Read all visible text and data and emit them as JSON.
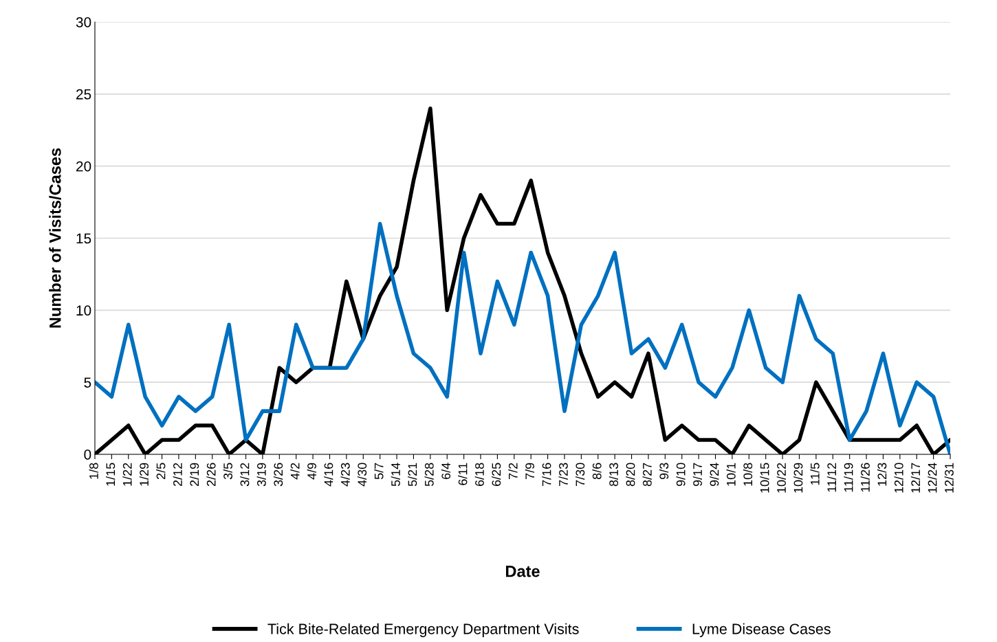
{
  "chart_data": {
    "type": "line",
    "xlabel": "Date",
    "ylabel": "Number of Visits/Cases",
    "categories": [
      "1/8",
      "1/15",
      "1/22",
      "1/29",
      "2/5",
      "2/12",
      "2/19",
      "2/26",
      "3/5",
      "3/12",
      "3/19",
      "3/26",
      "4/2",
      "4/9",
      "4/16",
      "4/23",
      "4/30",
      "5/7",
      "5/14",
      "5/21",
      "5/28",
      "6/4",
      "6/11",
      "6/18",
      "6/25",
      "7/2",
      "7/9",
      "7/16",
      "7/23",
      "7/30",
      "8/6",
      "8/13",
      "8/20",
      "8/27",
      "9/3",
      "9/10",
      "9/17",
      "9/24",
      "10/1",
      "10/8",
      "10/15",
      "10/22",
      "10/29",
      "11/5",
      "11/12",
      "11/19",
      "11/26",
      "12/3",
      "12/10",
      "12/17",
      "12/24",
      "12/31"
    ],
    "series": [
      {
        "name": "Tick Bite-Related Emergency Department Visits",
        "color": "#000000",
        "values": [
          0,
          1,
          2,
          0,
          1,
          1,
          2,
          2,
          0,
          1,
          0,
          6,
          5,
          6,
          6,
          12,
          8,
          11,
          13,
          19,
          24,
          10,
          15,
          18,
          16,
          16,
          19,
          14,
          11,
          7,
          4,
          5,
          4,
          7,
          1,
          2,
          1,
          1,
          0,
          2,
          1,
          0,
          1,
          5,
          3,
          1,
          1,
          1,
          1,
          2,
          0,
          1
        ]
      },
      {
        "name": "Lyme Disease Cases",
        "color": "#0070c0",
        "values": [
          5,
          4,
          9,
          4,
          2,
          4,
          3,
          4,
          9,
          1,
          3,
          3,
          9,
          6,
          6,
          6,
          8,
          16,
          11,
          7,
          6,
          4,
          14,
          7,
          12,
          9,
          14,
          11,
          3,
          9,
          11,
          14,
          7,
          8,
          6,
          9,
          5,
          4,
          6,
          10,
          6,
          5,
          11,
          8,
          7,
          1,
          3,
          7,
          2,
          5,
          4,
          0
        ]
      }
    ],
    "ylim": [
      0,
      30
    ],
    "yticks": [
      0,
      5,
      10,
      15,
      20,
      25,
      30
    ],
    "grid": "y",
    "legend": "bottom",
    "marker": "none",
    "line_style": "solid"
  }
}
